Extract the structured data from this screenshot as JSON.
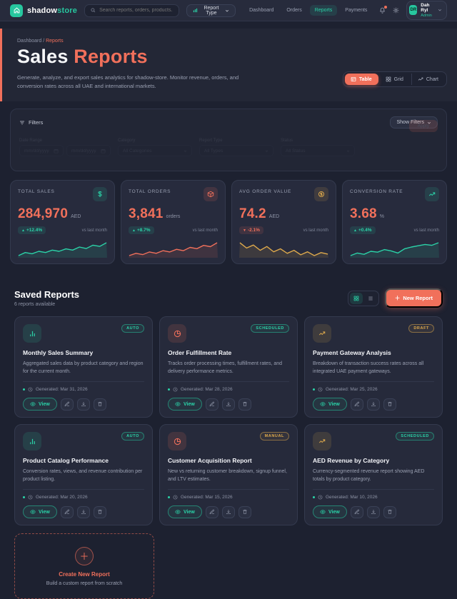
{
  "colors": {
    "accent": "#f1705b",
    "teal": "#27c79f",
    "teal_bright": "#2bd3a8",
    "amber": "#dfaa4c",
    "card_bg": "#262a3b",
    "page_bg": "#1d2130"
  },
  "navbar": {
    "brand_left": "shadow",
    "brand_right": "store",
    "search_placeholder": "Search reports, orders, products.",
    "report_type_label": "Report Type",
    "links": [
      {
        "label": "Dashboard",
        "active": false
      },
      {
        "label": "Orders",
        "active": false
      },
      {
        "label": "Reports",
        "active": true
      },
      {
        "label": "Payments",
        "active": false
      }
    ],
    "user": {
      "initials": "DR",
      "name": "Dah Ryl",
      "role": "Admin"
    }
  },
  "hero": {
    "breadcrumb_home": "Dashboard",
    "breadcrumb_sep": " / ",
    "breadcrumb_current": "Reports",
    "title_primary": "Sales ",
    "title_accent": "Reports",
    "description": "Generate, analyze, and export sales analytics for shadow-store. Monitor revenue, orders, and conversion rates across all UAE and international markets.",
    "view_toggles": [
      {
        "label": "Table",
        "icon": "table",
        "active": true
      },
      {
        "label": "Grid",
        "icon": "grid",
        "active": false
      },
      {
        "label": "Chart",
        "icon": "chart",
        "active": false
      }
    ]
  },
  "filters": {
    "title": "Filters",
    "toggle_label": "Show Filters",
    "apply_label": "Apply",
    "fields": [
      {
        "label": "Date Range",
        "type": "date-pair",
        "placeholders": [
          "mm/dd/yyyy",
          "mm/dd/yyyy"
        ]
      },
      {
        "label": "Category",
        "type": "select",
        "value": "All Categories"
      },
      {
        "label": "Report Type",
        "type": "select",
        "value": "All Types"
      },
      {
        "label": "Status",
        "type": "select",
        "value": "All Status"
      }
    ]
  },
  "stats": [
    {
      "label": "TOTAL SALES",
      "value": "284,970",
      "unit": "AED",
      "delta": "+12.4%",
      "direction": "up",
      "compare": "vs last month",
      "icon": "dollar",
      "color": "teal",
      "spark": [
        4,
        5,
        4.6,
        5.4,
        5,
        5.8,
        5.4,
        6.2,
        5.8,
        6.8,
        6.3,
        7.4,
        7,
        8.2
      ]
    },
    {
      "label": "TOTAL ORDERS",
      "value": "3,841",
      "unit": "orders",
      "delta": "+8.7%",
      "direction": "up",
      "compare": "vs last month",
      "icon": "box",
      "color": "coral",
      "spark": [
        3.5,
        4.2,
        3.8,
        4.6,
        4.2,
        5,
        4.6,
        5.4,
        5,
        6,
        5.6,
        6.6,
        6.2,
        7.4
      ]
    },
    {
      "label": "AVG ORDER VALUE",
      "value": "74.2",
      "unit": "AED",
      "delta": "-2.1%",
      "direction": "down",
      "compare": "vs last month",
      "icon": "coin",
      "color": "amber",
      "spark": [
        7.6,
        6.2,
        7,
        5.6,
        6.6,
        5.2,
        6,
        4.8,
        5.6,
        4.4,
        5.2,
        4.2,
        5,
        4.6
      ]
    },
    {
      "label": "CONVERSION RATE",
      "value": "3.68",
      "unit": "%",
      "delta": "+0.4%",
      "direction": "up",
      "compare": "vs last month",
      "icon": "trend",
      "color": "teal",
      "spark": [
        3,
        3.6,
        3.3,
        4,
        3.8,
        4.4,
        4.1,
        3.6,
        4.6,
        5,
        5.3,
        5.6,
        5.4,
        6
      ]
    }
  ],
  "saved_reports": {
    "title": "Saved Reports",
    "subtitle": "6 reports available",
    "new_report_label": "New Report",
    "view_label": "View",
    "cards": [
      {
        "title": "Monthly Sales Summary",
        "badge": "AUTO",
        "badge_color": "teal",
        "icon": "bars",
        "icon_color": "teal",
        "description": "Aggregated sales data by product category and region for the current month.",
        "generated": "Generated: Mar 31, 2026"
      },
      {
        "title": "Order Fulfillment Rate",
        "badge": "SCHEDULED",
        "badge_color": "teal",
        "icon": "pie",
        "icon_color": "coral",
        "description": "Tracks order processing times, fulfillment rates, and delivery performance metrics.",
        "generated": "Generated: Mar 28, 2026"
      },
      {
        "title": "Payment Gateway Analysis",
        "badge": "DRAFT",
        "badge_color": "amber",
        "icon": "trend",
        "icon_color": "amber",
        "description": "Breakdown of transaction success rates across all integrated UAE payment gateways.",
        "generated": "Generated: Mar 25, 2026"
      },
      {
        "title": "Product Catalog Performance",
        "badge": "AUTO",
        "badge_color": "teal",
        "icon": "bars",
        "icon_color": "teal",
        "description": "Conversion rates, views, and revenue contribution per product listing.",
        "generated": "Generated: Mar 20, 2026"
      },
      {
        "title": "Customer Acquisition Report",
        "badge": "MANUAL",
        "badge_color": "amber",
        "icon": "pie",
        "icon_color": "coral",
        "description": "New vs returning customer breakdown, signup funnel, and LTV estimates.",
        "generated": "Generated: Mar 15, 2026"
      },
      {
        "title": "AED Revenue by Category",
        "badge": "SCHEDULED",
        "badge_color": "teal",
        "icon": "trend",
        "icon_color": "amber",
        "description": "Currency-segmented revenue report showing AED totals by product category.",
        "generated": "Generated: Mar 10, 2026"
      }
    ],
    "create_card": {
      "title": "Create New Report",
      "subtitle": "Build a custom report from scratch"
    }
  }
}
